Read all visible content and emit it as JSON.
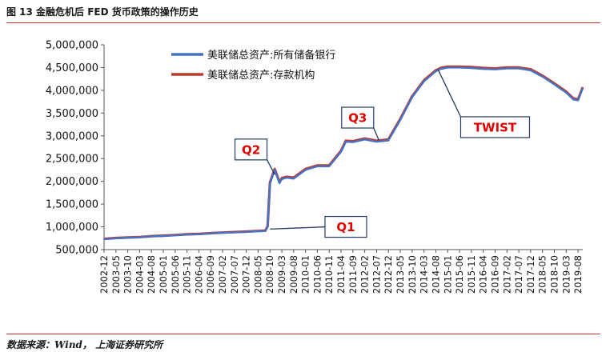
{
  "figure": {
    "title": "图 13 金融危机后 FED 货币政策的操作历史",
    "source": "数据来源：Wind， 上海证券研究所"
  },
  "chart_data": {
    "type": "line",
    "title": "",
    "xlabel": "",
    "ylabel": "",
    "ylim": [
      500000,
      5000000
    ],
    "yticks": [
      500000,
      1000000,
      1500000,
      2000000,
      2500000,
      3000000,
      3500000,
      4000000,
      4500000,
      5000000
    ],
    "ytick_labels": [
      "500,000",
      "1,000,000",
      "1,500,000",
      "2,000,000",
      "2,500,000",
      "3,000,000",
      "3,500,000",
      "4,000,000",
      "4,500,000",
      "5,000,000"
    ],
    "xtick_labels": [
      "2002-12",
      "2003-05",
      "2003-10",
      "2004-03",
      "2004-08",
      "2005-01",
      "2005-06",
      "2005-11",
      "2006-04",
      "2006-09",
      "2007-02",
      "2007-07",
      "2007-12",
      "2008-05",
      "2008-10",
      "2009-03",
      "2009-08",
      "2010-01",
      "2010-06",
      "2010-11",
      "2011-04",
      "2011-09",
      "2012-02",
      "2012-07",
      "2012-12",
      "2013-05",
      "2013-10",
      "2014-03",
      "2014-08",
      "2015-01",
      "2015-06",
      "2015-11",
      "2016-04",
      "2016-09",
      "2017-02",
      "2017-07",
      "2017-12",
      "2018-05",
      "2018-10",
      "2019-03",
      "2019-08"
    ],
    "grid": false,
    "legend_position": "top-left",
    "series": [
      {
        "name": "美联储总资产:所有储备银行",
        "color": "#4472c4",
        "x": [
          "2002-12",
          "2003-05",
          "2003-10",
          "2004-03",
          "2004-08",
          "2005-01",
          "2005-06",
          "2005-11",
          "2006-04",
          "2006-09",
          "2007-02",
          "2007-07",
          "2007-12",
          "2008-05",
          "2008-08",
          "2008-09",
          "2008-10",
          "2008-12",
          "2009-02",
          "2009-03",
          "2009-05",
          "2009-08",
          "2010-01",
          "2010-06",
          "2010-11",
          "2011-04",
          "2011-06",
          "2011-09",
          "2012-02",
          "2012-07",
          "2012-12",
          "2013-05",
          "2013-10",
          "2014-03",
          "2014-08",
          "2014-10",
          "2015-01",
          "2015-06",
          "2015-11",
          "2016-04",
          "2016-09",
          "2017-02",
          "2017-07",
          "2017-12",
          "2018-05",
          "2018-10",
          "2019-03",
          "2019-06",
          "2019-08",
          "2019-10"
        ],
        "values": [
          730000,
          750000,
          760000,
          770000,
          790000,
          800000,
          815000,
          830000,
          840000,
          855000,
          870000,
          880000,
          890000,
          905000,
          910000,
          1000000,
          1950000,
          2250000,
          1960000,
          2050000,
          2080000,
          2060000,
          2250000,
          2330000,
          2330000,
          2650000,
          2870000,
          2860000,
          2920000,
          2870000,
          2900000,
          3350000,
          3850000,
          4200000,
          4420000,
          4470000,
          4500000,
          4500000,
          4490000,
          4470000,
          4460000,
          4480000,
          4480000,
          4440000,
          4300000,
          4130000,
          3950000,
          3800000,
          3780000,
          4050000
        ]
      },
      {
        "name": "美联储总资产:存款机构",
        "color": "#c0392b",
        "x": [
          "2002-12",
          "2003-05",
          "2003-10",
          "2004-03",
          "2004-08",
          "2005-01",
          "2005-06",
          "2005-11",
          "2006-04",
          "2006-09",
          "2007-02",
          "2007-07",
          "2007-12",
          "2008-05",
          "2008-08",
          "2008-09",
          "2008-10",
          "2008-12",
          "2009-02",
          "2009-03",
          "2009-05",
          "2009-08",
          "2010-01",
          "2010-06",
          "2010-11",
          "2011-04",
          "2011-06",
          "2011-09",
          "2012-02",
          "2012-07",
          "2012-12",
          "2013-05",
          "2013-10",
          "2014-03",
          "2014-08",
          "2014-10",
          "2015-01",
          "2015-06",
          "2015-11",
          "2016-04",
          "2016-09",
          "2017-02",
          "2017-07",
          "2017-12",
          "2018-05",
          "2018-10",
          "2019-03",
          "2019-06",
          "2019-08",
          "2019-10"
        ],
        "values": [
          735000,
          755000,
          765000,
          775000,
          795000,
          805000,
          820000,
          835000,
          845000,
          860000,
          875000,
          885000,
          895000,
          910000,
          915000,
          1010000,
          1970000,
          2270000,
          1980000,
          2070000,
          2100000,
          2080000,
          2270000,
          2350000,
          2350000,
          2670000,
          2890000,
          2880000,
          2940000,
          2890000,
          2920000,
          3370000,
          3870000,
          4220000,
          4440000,
          4490000,
          4520000,
          4520000,
          4510000,
          4490000,
          4480000,
          4500000,
          4500000,
          4460000,
          4320000,
          4150000,
          3970000,
          3820000,
          3800000,
          4070000
        ]
      }
    ],
    "annotations": [
      {
        "label": "Q1",
        "target": [
          "2008-10",
          950000
        ],
        "box_anchor": [
          "2011-06",
          1000000
        ]
      },
      {
        "label": "Q2",
        "target": [
          "2008-12",
          2150000
        ],
        "box_anchor": [
          "2008-02",
          2700000
        ]
      },
      {
        "label": "Q3",
        "target": [
          "2012-08",
          2900000
        ],
        "box_anchor": [
          "2011-11",
          3400000
        ]
      },
      {
        "label": "TWIST",
        "target": [
          "2014-09",
          4450000
        ],
        "box_anchor": [
          "2016-09",
          3190000
        ]
      }
    ]
  }
}
